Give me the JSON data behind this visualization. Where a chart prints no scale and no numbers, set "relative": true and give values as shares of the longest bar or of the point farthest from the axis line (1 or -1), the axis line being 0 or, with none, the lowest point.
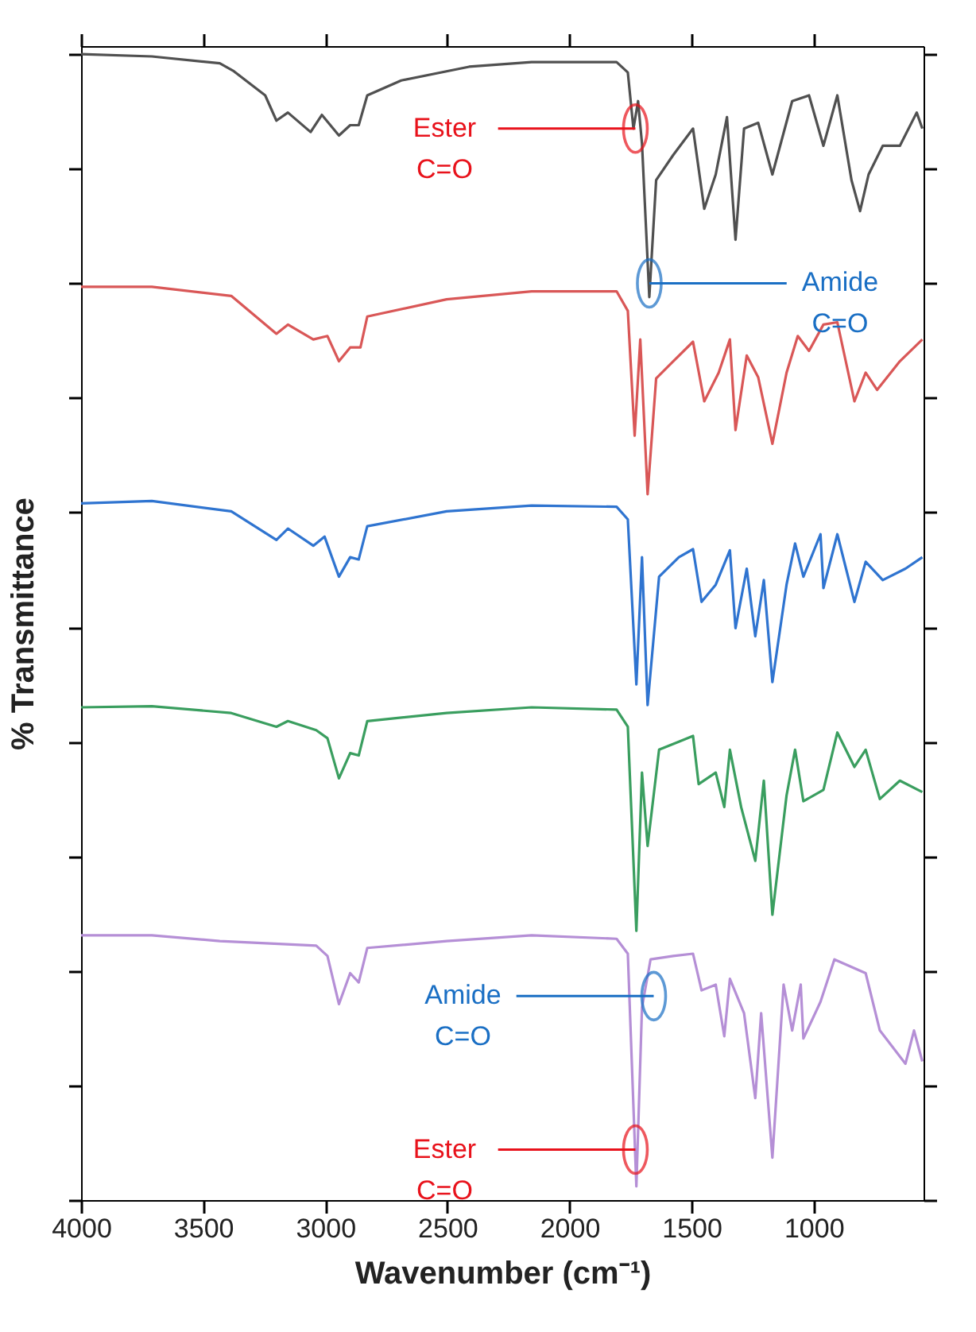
{
  "chart_data": {
    "type": "line",
    "relative": true,
    "xlabel": "Wavenumber (cm⁻¹)",
    "ylabel": "% Transmittance",
    "xlim": [
      4000,
      550
    ],
    "xticks": [
      4000,
      3500,
      3000,
      2500,
      2000,
      1500,
      1000
    ],
    "grid": false,
    "legend": false,
    "line_style": "solid",
    "marker": "none",
    "tick_labels": "x",
    "series": [
      {
        "color": "#505050",
        "x": [
          4000,
          3710,
          3432,
          3374,
          3246,
          3200,
          3153,
          3060,
          3014,
          2944,
          2898,
          2863,
          2828,
          2689,
          2411,
          2155,
          1807,
          1761,
          1738,
          1719,
          1703,
          1673,
          1645,
          1575,
          1494,
          1448,
          1401,
          1355,
          1320,
          1285,
          1227,
          1169,
          1088,
          1019,
          960,
          903,
          845,
          810,
          775,
          717,
          647,
          578,
          555
        ],
        "values": [
          1.0,
          0.998,
          0.992,
          0.985,
          0.964,
          0.942,
          0.949,
          0.932,
          0.947,
          0.929,
          0.938,
          0.938,
          0.964,
          0.977,
          0.989,
          0.993,
          0.993,
          0.984,
          0.935,
          0.959,
          0.922,
          0.788,
          0.89,
          0.912,
          0.935,
          0.865,
          0.895,
          0.945,
          0.838,
          0.935,
          0.94,
          0.895,
          0.959,
          0.964,
          0.92,
          0.964,
          0.89,
          0.863,
          0.895,
          0.92,
          0.92,
          0.949,
          0.935
        ]
      },
      {
        "color": "#d95757",
        "x": [
          4000,
          3710,
          3385,
          3200,
          3153,
          3049,
          2991,
          2944,
          2898,
          2856,
          2828,
          2503,
          2155,
          1807,
          1761,
          1733,
          1710,
          1680,
          1645,
          1575,
          1494,
          1448,
          1389,
          1343,
          1320,
          1274,
          1227,
          1169,
          1111,
          1065,
          1019,
          960,
          903,
          833,
          787,
          740,
          647,
          555
        ],
        "values": [
          0.797,
          0.797,
          0.789,
          0.756,
          0.764,
          0.751,
          0.754,
          0.732,
          0.744,
          0.744,
          0.771,
          0.786,
          0.793,
          0.793,
          0.776,
          0.667,
          0.751,
          0.616,
          0.717,
          0.732,
          0.749,
          0.697,
          0.722,
          0.751,
          0.672,
          0.737,
          0.718,
          0.66,
          0.722,
          0.754,
          0.741,
          0.764,
          0.766,
          0.697,
          0.722,
          0.707,
          0.732,
          0.751
        ]
      },
      {
        "color": "#2f74d0",
        "x": [
          4000,
          3710,
          3385,
          3200,
          3153,
          3049,
          3003,
          2944,
          2898,
          2863,
          2828,
          2503,
          2155,
          1807,
          1761,
          1726,
          1703,
          1680,
          1633,
          1552,
          1494,
          1459,
          1401,
          1343,
          1320,
          1274,
          1239,
          1204,
          1169,
          1111,
          1076,
          1042,
          972,
          960,
          903,
          833,
          787,
          717,
          624,
          555
        ],
        "values": [
          0.608,
          0.61,
          0.601,
          0.576,
          0.586,
          0.571,
          0.579,
          0.544,
          0.561,
          0.559,
          0.588,
          0.601,
          0.606,
          0.605,
          0.594,
          0.45,
          0.561,
          0.432,
          0.544,
          0.561,
          0.568,
          0.522,
          0.537,
          0.567,
          0.499,
          0.551,
          0.492,
          0.541,
          0.452,
          0.537,
          0.573,
          0.544,
          0.581,
          0.534,
          0.581,
          0.522,
          0.557,
          0.541,
          0.551,
          0.561
        ]
      },
      {
        "color": "#3a9e5f",
        "x": [
          4000,
          3710,
          3385,
          3200,
          3153,
          3037,
          2991,
          2944,
          2898,
          2863,
          2828,
          2503,
          2155,
          1807,
          1761,
          1726,
          1703,
          1680,
          1633,
          1552,
          1494,
          1471,
          1401,
          1366,
          1343,
          1297,
          1239,
          1204,
          1169,
          1111,
          1076,
          1042,
          960,
          903,
          833,
          787,
          729,
          647,
          555
        ],
        "values": [
          0.43,
          0.431,
          0.425,
          0.413,
          0.418,
          0.41,
          0.403,
          0.368,
          0.39,
          0.388,
          0.418,
          0.425,
          0.43,
          0.428,
          0.413,
          0.235,
          0.373,
          0.309,
          0.393,
          0.4,
          0.405,
          0.363,
          0.373,
          0.343,
          0.393,
          0.343,
          0.296,
          0.366,
          0.249,
          0.353,
          0.393,
          0.348,
          0.358,
          0.408,
          0.378,
          0.393,
          0.35,
          0.366,
          0.356
        ]
      },
      {
        "color": "#b58fd6",
        "x": [
          4000,
          3710,
          3432,
          3037,
          2991,
          2944,
          2898,
          2863,
          2828,
          2503,
          2155,
          1807,
          1761,
          1726,
          1703,
          1668,
          1575,
          1494,
          1459,
          1401,
          1366,
          1343,
          1285,
          1239,
          1215,
          1169,
          1123,
          1088,
          1053,
          1042,
          972,
          915,
          787,
          729,
          624,
          589,
          555
        ],
        "values": [
          0.231,
          0.231,
          0.226,
          0.222,
          0.213,
          0.171,
          0.198,
          0.19,
          0.22,
          0.226,
          0.231,
          0.228,
          0.215,
          0.012,
          0.168,
          0.21,
          0.213,
          0.215,
          0.183,
          0.188,
          0.143,
          0.193,
          0.163,
          0.089,
          0.163,
          0.037,
          0.188,
          0.148,
          0.188,
          0.141,
          0.173,
          0.21,
          0.198,
          0.148,
          0.119,
          0.148,
          0.121
        ]
      }
    ],
    "annotations": [
      {
        "text": "Ester C=O",
        "x": 1730,
        "y": 0.935
      },
      {
        "text": "Amide C=O",
        "x": 1673,
        "y": 0.8
      },
      {
        "text": "Amide C=O",
        "x": 1655,
        "y": 0.178
      },
      {
        "text": "Ester C=O",
        "x": 1730,
        "y": 0.044
      }
    ]
  }
}
